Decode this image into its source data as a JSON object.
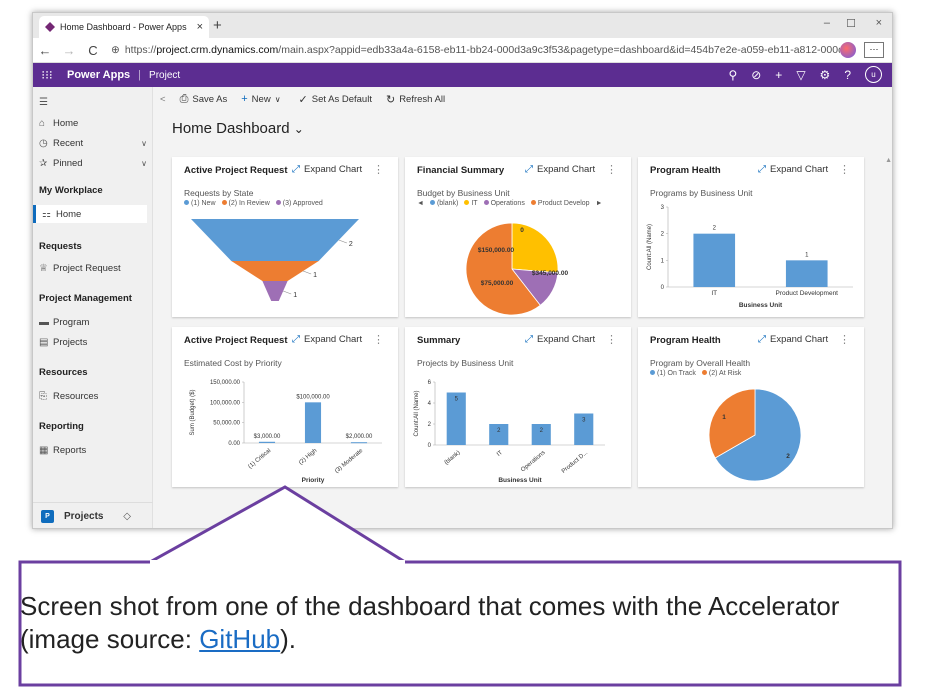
{
  "browser": {
    "tab_title": "Home Dashboard - Power Apps",
    "tab_close": "×",
    "new_tab": "+",
    "minimize": "–",
    "maximize": "☐",
    "close": "×",
    "back": "←",
    "forward": "→",
    "refresh": "C",
    "url_prefix": "https://",
    "url_host": "project.crm.dynamics.com",
    "url_path": "/main.aspx?appid=edb33a4a-6158-eb11-bb24-000d3a9c3f53&pagetype=dashboard&id=454b7e2e-a059-eb11-a812-000d3a31e...",
    "more": "···"
  },
  "appbar": {
    "waffle": "⁝⁝⁝",
    "name": "Power Apps",
    "separator": "|",
    "subtitle": "Project",
    "user": "u"
  },
  "sidebar": {
    "menu": "☰",
    "home": "Home",
    "recent": "Recent",
    "pinned": "Pinned",
    "group_workplace": "My Workplace",
    "workplace_home": "Home",
    "group_requests": "Requests",
    "project_request": "Project Request",
    "group_pm": "Project Management",
    "program": "Program",
    "projects": "Projects",
    "group_resources": "Resources",
    "resources": "Resources",
    "group_reporting": "Reporting",
    "reports": "Reports",
    "footer_badge": "P",
    "footer_label": "Projects",
    "footer_chevron": "◇"
  },
  "cmdbar": {
    "back": "<",
    "save_as": "Save As",
    "new": "New",
    "set_default": "Set As Default",
    "refresh_all": "Refresh All"
  },
  "dashboard": {
    "title": "Home Dashboard",
    "title_chevron": "⌄"
  },
  "expand_label": "Expand Chart",
  "more_label": "⋮",
  "cards": {
    "c1": {
      "title": "Active Project Request",
      "subtitle": "Requests by State",
      "legend": [
        "(1) New",
        "(2) In Review",
        "(3) Approved"
      ]
    },
    "c2": {
      "title": "Financial Summary",
      "subtitle": "Budget by Business Unit",
      "legend": [
        "(blank)",
        "IT",
        "Operations",
        "Product Develop"
      ],
      "legend_prev": "◄",
      "legend_next": "►"
    },
    "c3": {
      "title": "Program Health",
      "subtitle": "Programs by Business Unit",
      "ylabel": "Count:All (Name)",
      "xlabel": "Business Unit"
    },
    "c4": {
      "title": "Active Project Request",
      "subtitle": "Estimated Cost by Priority",
      "ylabel": "Sum (Budget) ($)",
      "xlabel": "Priority"
    },
    "c5": {
      "title": "Summary",
      "subtitle": "Projects by Business Unit",
      "ylabel": "Count:All (Name)",
      "xlabel": "Business Unit"
    },
    "c6": {
      "title": "Program Health",
      "subtitle": "Program by Overall Health",
      "legend": [
        "(1) On Track",
        "(2) At Risk"
      ]
    }
  },
  "colors": {
    "blue": "#5b9bd5",
    "orange": "#ed7d31",
    "purple": "#9e6fb5",
    "yellow": "#ffc000",
    "appbar": "#5c2d91",
    "accent": "#0f6cbd"
  },
  "chart_data": [
    {
      "id": "requests-by-state",
      "type": "funnel",
      "title": "Requests by State",
      "categories": [
        "(1) New",
        "(2) In Review",
        "(3) Approved"
      ],
      "values": [
        2,
        1,
        1
      ],
      "colors": [
        "#5b9bd5",
        "#ed7d31",
        "#9e6fb5"
      ]
    },
    {
      "id": "budget-by-business-unit",
      "type": "pie",
      "title": "Budget by Business Unit",
      "categories": [
        "(blank)",
        "IT",
        "Operations",
        "Product Develop"
      ],
      "values": [
        0,
        150000,
        75000,
        345000
      ],
      "labels": [
        "0",
        "$150,000.00",
        "$75,000.00",
        "$345,000.00"
      ],
      "colors": [
        "#5b9bd5",
        "#ffc000",
        "#9e6fb5",
        "#ed7d31"
      ]
    },
    {
      "id": "programs-by-business-unit",
      "type": "bar",
      "title": "Programs by Business Unit",
      "categories": [
        "IT",
        "Product Development"
      ],
      "values": [
        2,
        1
      ],
      "ylim": [
        0,
        3
      ],
      "yticks": [
        "0",
        "1",
        "2",
        "3"
      ],
      "ylabel": "Count:All (Name)",
      "xlabel": "Business Unit"
    },
    {
      "id": "estimated-cost-by-priority",
      "type": "bar",
      "title": "Estimated Cost by Priority",
      "categories": [
        "(1) Critical",
        "(2) High",
        "(3) Moderate"
      ],
      "values": [
        3000,
        100000,
        2000
      ],
      "labels": [
        "$3,000.00",
        "$100,000.00",
        "$2,000.00"
      ],
      "ylim": [
        0,
        150000
      ],
      "yticks": [
        "0.00",
        "50,000.00",
        "100,000.00",
        "150,000.00"
      ],
      "ylabel": "Sum (Budget) ($)",
      "xlabel": "Priority"
    },
    {
      "id": "projects-by-business-unit",
      "type": "bar",
      "title": "Projects by Business Unit",
      "categories": [
        "(blank)",
        "IT",
        "Operations",
        "Product D..."
      ],
      "values": [
        5,
        2,
        2,
        3
      ],
      "labels": [
        "5",
        "2",
        "2",
        "3"
      ],
      "ylim": [
        0,
        6
      ],
      "yticks": [
        "0",
        "2",
        "4",
        "6"
      ],
      "ylabel": "Count:All (Name)",
      "xlabel": "Business Unit"
    },
    {
      "id": "program-by-overall-health",
      "type": "pie",
      "title": "Program by Overall Health",
      "categories": [
        "(1) On Track",
        "(2) At Risk"
      ],
      "values": [
        2,
        1
      ],
      "labels": [
        "2",
        "1"
      ],
      "colors": [
        "#5b9bd5",
        "#ed7d31"
      ]
    }
  ],
  "caption": {
    "text": "Screen shot from one of the dashboard that comes with the Accelerator (image source: ",
    "link": "GitHub",
    "suffix": ")."
  }
}
